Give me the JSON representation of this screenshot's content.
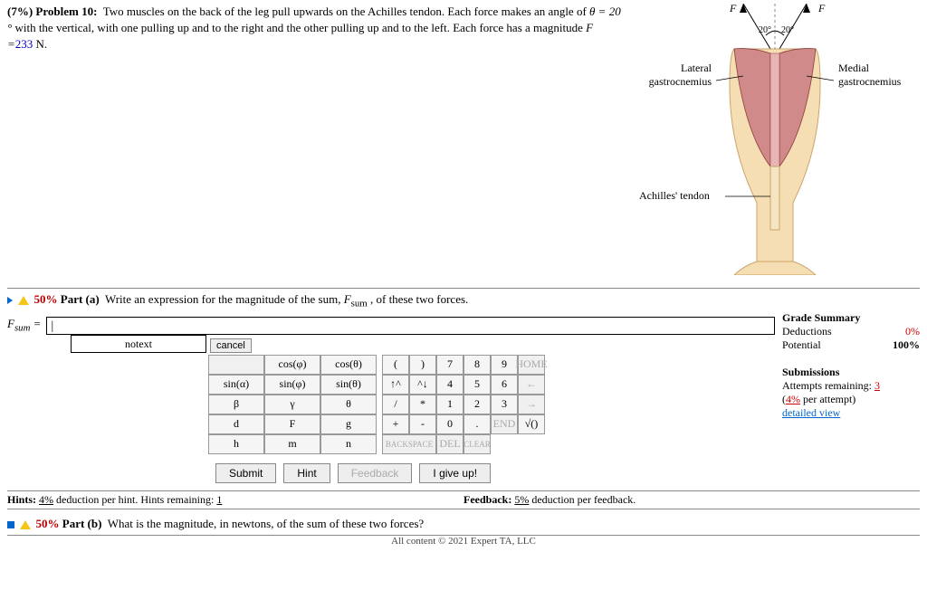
{
  "problem": {
    "pct": "(7%)",
    "num": "Problem 10:",
    "text1": "Two muscles on the back of the leg pull upwards on the Achilles tendon. Each force makes an angle of ",
    "theta_eq": "θ = 20 °",
    "text2": " with the vertical, with one pulling up and to the right and the other pulling up and to the left. Each force has a magnitude ",
    "f_eq_prefix": "F =",
    "f_val": "233",
    "f_unit": " N."
  },
  "figure": {
    "F_left": "F",
    "F_right": "F",
    "angle_left": "20°",
    "angle_right": "20°",
    "lateral": "Lateral\ngastrocnemius",
    "medial": "Medial\ngastrocnemius",
    "achilles": "Achilles' tendon",
    "colors": {
      "muscle": "#d08a8a",
      "muscle_line": "#8b3a3a",
      "bone": "#f4e4c1",
      "bone_line": "#caa46a",
      "leg": "#f5deb3"
    }
  },
  "part_a": {
    "pct": "50%",
    "label": "Part (a)",
    "prompt": "Write an expression for the magnitude of the sum, ",
    "fsum": "F",
    "fsum_sub": "sum",
    "prompt2": " , of these two forces.",
    "input_label_F": "F",
    "input_label_sub": "sum",
    "input_eq": " = ",
    "input_value": "|",
    "notext": "notext",
    "cancel": "cancel"
  },
  "palette": {
    "fn": [
      [
        "",
        "cos(φ)",
        "cos(θ)"
      ],
      [
        "sin(α)",
        "sin(φ)",
        "sin(θ)"
      ],
      [
        "β",
        "γ",
        "θ"
      ],
      [
        "d",
        "F",
        "g"
      ],
      [
        "h",
        "m",
        "n"
      ]
    ],
    "num": [
      [
        "(",
        ")",
        "7",
        "8",
        "9",
        "HOME"
      ],
      [
        "↑^",
        "^↓",
        "4",
        "5",
        "6",
        "←"
      ],
      [
        "/",
        "*",
        "1",
        "2",
        "3",
        "→"
      ],
      [
        "+",
        "-",
        "0",
        ".",
        "END",
        ""
      ],
      [
        "√()",
        "BACKSPACE",
        "DEL",
        "CLEAR",
        "",
        ""
      ]
    ],
    "num_layout": [
      [
        1,
        1,
        1,
        1,
        1,
        1
      ],
      [
        1,
        1,
        1,
        1,
        1,
        1
      ],
      [
        1,
        1,
        1,
        1,
        1,
        1
      ],
      [
        1,
        1,
        1,
        1,
        1,
        0
      ],
      [
        1,
        2,
        1,
        1,
        0,
        0
      ]
    ],
    "num_disabled": [
      [
        0,
        0,
        0,
        0,
        0,
        1
      ],
      [
        0,
        0,
        0,
        0,
        0,
        1
      ],
      [
        0,
        0,
        0,
        0,
        0,
        1
      ],
      [
        0,
        0,
        0,
        0,
        1,
        0
      ],
      [
        0,
        1,
        1,
        1,
        0,
        0
      ]
    ]
  },
  "actions": {
    "submit": "Submit",
    "hint": "Hint",
    "feedback": "Feedback",
    "giveup": "I give up!"
  },
  "hints": {
    "hints_label": "Hints:",
    "hints_pct": "4%",
    "hints_text": " deduction per hint. Hints remaining: ",
    "hints_rem": "1",
    "fb_label": "Feedback:",
    "fb_pct": "5%",
    "fb_text": " deduction per feedback."
  },
  "grade": {
    "title": "Grade Summary",
    "ded_label": "Deductions",
    "ded_val": "0%",
    "pot_label": "Potential",
    "pot_val": "100%",
    "sub_title": "Submissions",
    "att_label": "Attempts remaining:",
    "att_val": "3",
    "per_att": "(4% per attempt)",
    "detailed": "detailed view"
  },
  "part_b": {
    "pct": "50%",
    "label": "Part (b)",
    "prompt": "What is the magnitude, in newtons, of the sum of these two forces?"
  },
  "footer": "All content © 2021 Expert TA, LLC"
}
